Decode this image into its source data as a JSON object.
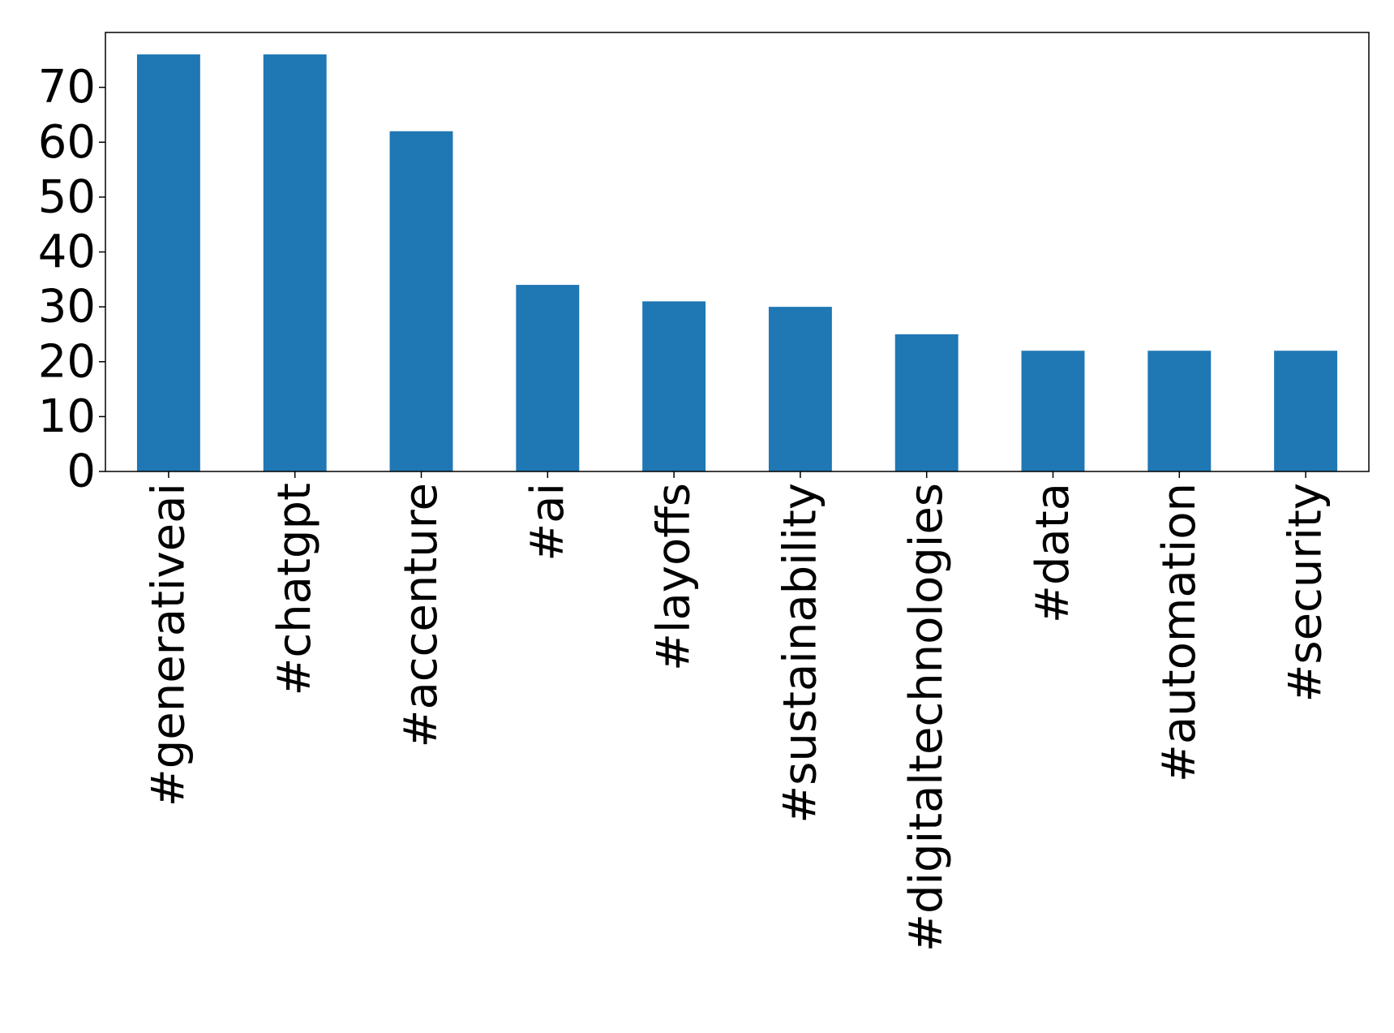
{
  "chart_data": {
    "type": "bar",
    "title": "",
    "xlabel": "",
    "ylabel": "",
    "categories": [
      "#generativeai",
      "#chatgpt",
      "#accenture",
      "#ai",
      "#layoffs",
      "#sustainability",
      "#digitaltechnologies",
      "#data",
      "#automation",
      "#security"
    ],
    "values": [
      76,
      76,
      62,
      34,
      31,
      30,
      25,
      22,
      22,
      22
    ],
    "ylim": [
      0,
      80
    ],
    "yticks": [
      0,
      10,
      20,
      30,
      40,
      50,
      60,
      70
    ],
    "grid": false,
    "legend": "none",
    "bar_color": "#1f77b4"
  }
}
